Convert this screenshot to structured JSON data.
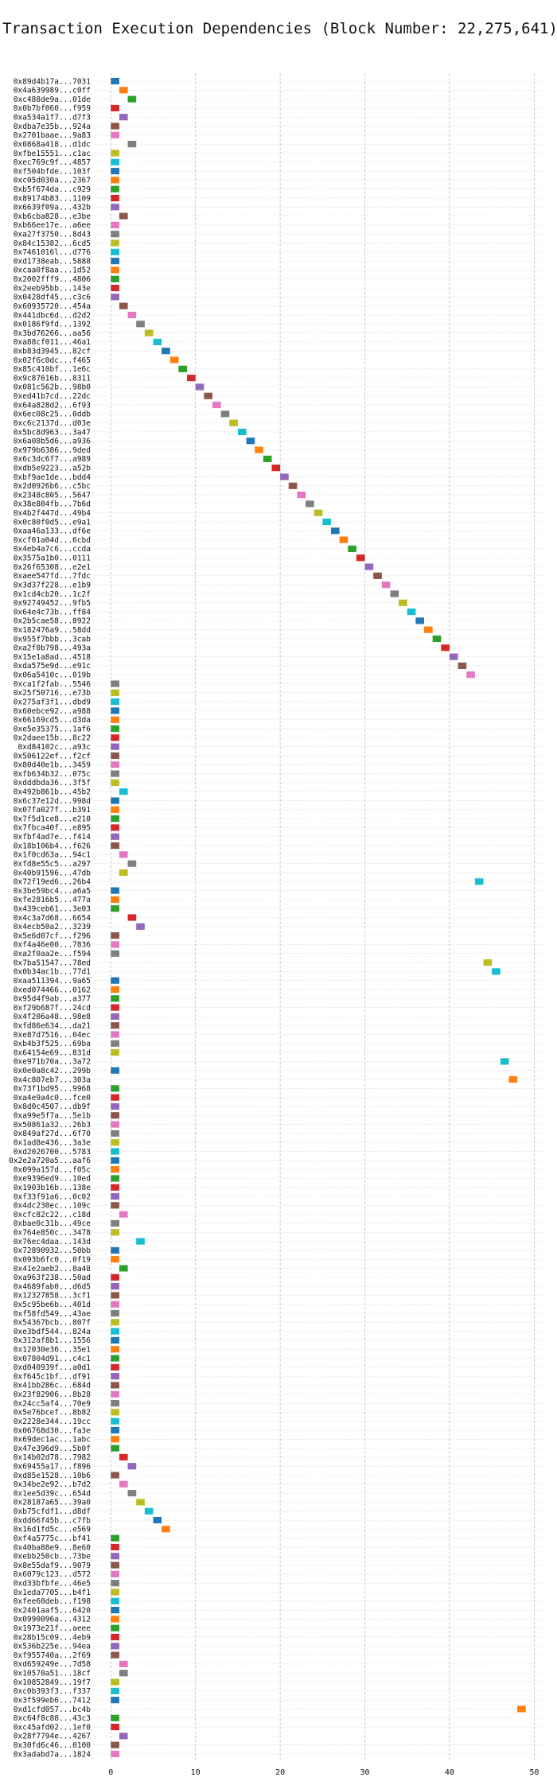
{
  "chart_data": {
    "type": "gantt",
    "title": "Transaction Execution Dependencies (Block Number: 22,275,641)",
    "xlabel": "",
    "ylabel": "",
    "xlim": [
      -2,
      51
    ],
    "x_ticks": [
      0,
      10,
      20,
      30,
      40,
      50
    ],
    "grid": true,
    "bar_width": 1,
    "palette": [
      "#1f77b4",
      "#ff7f0e",
      "#2ca02c",
      "#d62728",
      "#9467bd",
      "#8c564b",
      "#e377c2",
      "#7f7f7f",
      "#bcbd22",
      "#17becf"
    ],
    "transactions": [
      {
        "tx": "0x89d4b17a...7031",
        "start": 0
      },
      {
        "tx": "0x4a639989...c0ff",
        "start": 1
      },
      {
        "tx": "0xc488de9a...01de",
        "start": 2
      },
      {
        "tx": "0x0b7bf060...f959",
        "start": 0
      },
      {
        "tx": "0xa534a1f7...d7f3",
        "start": 1
      },
      {
        "tx": "0xdba7e35b...924a",
        "start": 0
      },
      {
        "tx": "0x2701baae...9a83",
        "start": 0
      },
      {
        "tx": "0x0868a418...d1dc",
        "start": 2
      },
      {
        "tx": "0xfbe15551...c1ac",
        "start": 0
      },
      {
        "tx": "0xec769c9f...4857",
        "start": 0
      },
      {
        "tx": "0xf504bfde...103f",
        "start": 0
      },
      {
        "tx": "0xc05d030a...2367",
        "start": 0
      },
      {
        "tx": "0xb5f674da...c929",
        "start": 0
      },
      {
        "tx": "0x89174b83...1109",
        "start": 0
      },
      {
        "tx": "0x6639f09a...432b",
        "start": 0
      },
      {
        "tx": "0xb6cba828...e3be",
        "start": 1
      },
      {
        "tx": "0xb66ee17e...a6ee",
        "start": 0
      },
      {
        "tx": "0xa27f3750...8d43",
        "start": 0
      },
      {
        "tx": "0x84c15382...6cd5",
        "start": 0
      },
      {
        "tx": "0x7461016l...d776",
        "start": 0
      },
      {
        "tx": "0xd1738eab...5888",
        "start": 0
      },
      {
        "tx": "0xcaa0f8aa...1d52",
        "start": 0
      },
      {
        "tx": "0x2002fff9...4806",
        "start": 0
      },
      {
        "tx": "0x2eeb95bb...143e",
        "start": 0
      },
      {
        "tx": "0x0428df45...c3c6",
        "start": 0
      },
      {
        "tx": "0x60935720...454a",
        "start": 1
      },
      {
        "tx": "0x441dbc6d...d2d2",
        "start": 2
      },
      {
        "tx": "0x0186f9fd...1392",
        "start": 3
      },
      {
        "tx": "0x3bd76266...aa56",
        "start": 4
      },
      {
        "tx": "0xa88cf011...46a1",
        "start": 5
      },
      {
        "tx": "0xb83d3945...82cf",
        "start": 6
      },
      {
        "tx": "0x02f6c0dc...f465",
        "start": 7
      },
      {
        "tx": "0x85c410bf...1e6c",
        "start": 8
      },
      {
        "tx": "0x9c87616b...8311",
        "start": 9
      },
      {
        "tx": "0x081c562b...98b0",
        "start": 10
      },
      {
        "tx": "0xed41b7cd...22dc",
        "start": 11
      },
      {
        "tx": "0x64a828d2...6f93",
        "start": 12
      },
      {
        "tx": "0x6ec08c25...0ddb",
        "start": 13
      },
      {
        "tx": "0xc6c2137d...d03e",
        "start": 14
      },
      {
        "tx": "0x5bc8d963...3a47",
        "start": 15
      },
      {
        "tx": "0x6a08b5d6...a936",
        "start": 16
      },
      {
        "tx": "0x979b6386...9ded",
        "start": 17
      },
      {
        "tx": "0x6c3dc6f7...a989",
        "start": 18
      },
      {
        "tx": "0xdb5e9223...a52b",
        "start": 19
      },
      {
        "tx": "0xbf9ae1de...bdd4",
        "start": 20
      },
      {
        "tx": "0x2d0926b6...c5bc",
        "start": 21
      },
      {
        "tx": "0x2348c805...5647",
        "start": 22
      },
      {
        "tx": "0x38e804fb...7b6d",
        "start": 23
      },
      {
        "tx": "0x4b2f447d...49b4",
        "start": 24
      },
      {
        "tx": "0x0c80f0d5...e9a1",
        "start": 25
      },
      {
        "tx": "0xaa46a133...df6e",
        "start": 26
      },
      {
        "tx": "0xcf01a04d...6cbd",
        "start": 27
      },
      {
        "tx": "0x4eb4a7c6...ccda",
        "start": 28
      },
      {
        "tx": "0x3575a1b0...0111",
        "start": 29
      },
      {
        "tx": "0x26f65308...e2e1",
        "start": 30
      },
      {
        "tx": "0xaee547fd...7fdc",
        "start": 31
      },
      {
        "tx": "0x3d37f228...e1b9",
        "start": 32
      },
      {
        "tx": "0x1cd4cb20...1c2f",
        "start": 33
      },
      {
        "tx": "0x92749452...9fb5",
        "start": 34
      },
      {
        "tx": "0x64e4c73b...ff84",
        "start": 35
      },
      {
        "tx": "0x2b5cae58...8922",
        "start": 36
      },
      {
        "tx": "0x182476a9...58dd",
        "start": 37
      },
      {
        "tx": "0x955f7bbb...3cab",
        "start": 38
      },
      {
        "tx": "0xa2f0b798...493a",
        "start": 39
      },
      {
        "tx": "0x15e1a8ad...4518",
        "start": 40
      },
      {
        "tx": "0xda575e9d...e91c",
        "start": 41
      },
      {
        "tx": "0x06a5410c...019b",
        "start": 42
      },
      {
        "tx": "0xca1f2fab...5546",
        "start": 0
      },
      {
        "tx": "0x25f50716...e73b",
        "start": 0
      },
      {
        "tx": "0x275af3f1...dbd9",
        "start": 0
      },
      {
        "tx": "0x60ebce92...a988",
        "start": 0
      },
      {
        "tx": "0x66169cd5...d3da",
        "start": 0
      },
      {
        "tx": "0xe5e35375...1af6",
        "start": 0
      },
      {
        "tx": "0x2daee15b...8c22",
        "start": 0
      },
      {
        "tx": "0xd84102c...a93c",
        "start": 0
      },
      {
        "tx": "0x506122ef...f2cf",
        "start": 0
      },
      {
        "tx": "0x80d40e1b...3459",
        "start": 0
      },
      {
        "tx": "0xfb634b32...075c",
        "start": 0
      },
      {
        "tx": "0xdddbda36...3f5f",
        "start": 0
      },
      {
        "tx": "0x492b861b...45b2",
        "start": 1
      },
      {
        "tx": "0x6c37e12d...998d",
        "start": 0
      },
      {
        "tx": "0x07fa027f...b391",
        "start": 0
      },
      {
        "tx": "0x7f5d1ce8...e210",
        "start": 0
      },
      {
        "tx": "0x7fbca40f...e895",
        "start": 0
      },
      {
        "tx": "0xfbf4ad7e...f414",
        "start": 0
      },
      {
        "tx": "0x18b106b4...f626",
        "start": 0
      },
      {
        "tx": "0x1f0cd63a...94c1",
        "start": 1
      },
      {
        "tx": "0xfd8e55c5...a297",
        "start": 2
      },
      {
        "tx": "0x40b91596...47db",
        "start": 1
      },
      {
        "tx": "0x72f19ed6...26b4",
        "start": 43
      },
      {
        "tx": "0x3be59bc4...a6a5",
        "start": 0
      },
      {
        "tx": "0xfe2816b5...477a",
        "start": 0
      },
      {
        "tx": "0x439ceb61...3e03",
        "start": 0
      },
      {
        "tx": "0x4c3a7d68...6654",
        "start": 2
      },
      {
        "tx": "0x4ecb50a2...3239",
        "start": 3
      },
      {
        "tx": "0x5e6d07cf...f296",
        "start": 0
      },
      {
        "tx": "0xf4a46e00...7836",
        "start": 0
      },
      {
        "tx": "0xa2f0aa2e...f594",
        "start": 0
      },
      {
        "tx": "0x7ba51547...78ed",
        "start": 44
      },
      {
        "tx": "0x0b34ac1b...77d1",
        "start": 45
      },
      {
        "tx": "0xaa511394...9a65",
        "start": 0
      },
      {
        "tx": "0xed074466...0162",
        "start": 0
      },
      {
        "tx": "0x95d4f9ab...a377",
        "start": 0
      },
      {
        "tx": "0xf29b687f...24cd",
        "start": 0
      },
      {
        "tx": "0x4f206a48...98e8",
        "start": 0
      },
      {
        "tx": "0xfd86e634...da21",
        "start": 0
      },
      {
        "tx": "0xe87d7516...04ec",
        "start": 0
      },
      {
        "tx": "0xb4b3f525...69ba",
        "start": 0
      },
      {
        "tx": "0x64154e69...831d",
        "start": 0
      },
      {
        "tx": "0xe971b70a...3a72",
        "start": 46
      },
      {
        "tx": "0x0e0a8c42...299b",
        "start": 0
      },
      {
        "tx": "0x4c807eb7...303a",
        "start": 47
      },
      {
        "tx": "0x73f1bd95...9968",
        "start": 0
      },
      {
        "tx": "0xa4e9a4c0...fce0",
        "start": 0
      },
      {
        "tx": "0x8d0c4507...db9f",
        "start": 0
      },
      {
        "tx": "0xa99e5f7a...5e1b",
        "start": 0
      },
      {
        "tx": "0x50861a32...26b3",
        "start": 0
      },
      {
        "tx": "0x849af27d...6f70",
        "start": 0
      },
      {
        "tx": "0x1ad8e436...3a3e",
        "start": 0
      },
      {
        "tx": "0xd2026700...5783",
        "start": 0
      },
      {
        "tx": "0x2e2a720a5...aaf6",
        "start": 0
      },
      {
        "tx": "0x099a157d...f05c",
        "start": 0
      },
      {
        "tx": "0xe9396ed9...10ed",
        "start": 0
      },
      {
        "tx": "0x1903b16b...138e",
        "start": 0
      },
      {
        "tx": "0xf33f91a6...0c02",
        "start": 0
      },
      {
        "tx": "0x4dc230ec...109c",
        "start": 0
      },
      {
        "tx": "0xcfc82c22...c18d",
        "start": 1
      },
      {
        "tx": "0xbae0c31b...49ce",
        "start": 0
      },
      {
        "tx": "0x764e850c...3478",
        "start": 0
      },
      {
        "tx": "0x76ec4daa...143d",
        "start": 3
      },
      {
        "tx": "0x72890932...50bb",
        "start": 0
      },
      {
        "tx": "0x093b6fc0...0f19",
        "start": 0
      },
      {
        "tx": "0x41e2aeb2...8a48",
        "start": 1
      },
      {
        "tx": "0xa963f238...50ad",
        "start": 0
      },
      {
        "tx": "0x4689fab0...d6d5",
        "start": 0
      },
      {
        "tx": "0x12327858...3cf1",
        "start": 0
      },
      {
        "tx": "0x5c95be6b...401d",
        "start": 0
      },
      {
        "tx": "0xf58fd549...43ae",
        "start": 0
      },
      {
        "tx": "0x54367bcb...807f",
        "start": 0
      },
      {
        "tx": "0xe3bdf544...824a",
        "start": 0
      },
      {
        "tx": "0x312af8b1...1556",
        "start": 0
      },
      {
        "tx": "0x12030e36...35e1",
        "start": 0
      },
      {
        "tx": "0x07804d91...c4c1",
        "start": 0
      },
      {
        "tx": "0xd040939f...a0d1",
        "start": 0
      },
      {
        "tx": "0xf645c1bf...df91",
        "start": 0
      },
      {
        "tx": "0x41bb286c...684d",
        "start": 0
      },
      {
        "tx": "0x23f82906...8b28",
        "start": 0
      },
      {
        "tx": "0x24cc5af4...70e9",
        "start": 0
      },
      {
        "tx": "0x5e76bcef...8b82",
        "start": 0
      },
      {
        "tx": "0x2228e344...19cc",
        "start": 0
      },
      {
        "tx": "0x06768d30...fa3e",
        "start": 0
      },
      {
        "tx": "0x69dec1ac...1abc",
        "start": 0
      },
      {
        "tx": "0x47e396d9...5b0f",
        "start": 0
      },
      {
        "tx": "0x14b02d78...7982",
        "start": 1
      },
      {
        "tx": "0x69455a17...f896",
        "start": 2
      },
      {
        "tx": "0xd85e1528...10b6",
        "start": 0
      },
      {
        "tx": "0x34be2e92...b7d2",
        "start": 1
      },
      {
        "tx": "0x1ee5d39c...654d",
        "start": 2
      },
      {
        "tx": "0x28187a65...39a0",
        "start": 3
      },
      {
        "tx": "0xb75cfdf1...d8df",
        "start": 4
      },
      {
        "tx": "0xdd66f45b...c7fb",
        "start": 5
      },
      {
        "tx": "0x16d1fd5c...e569",
        "start": 6
      },
      {
        "tx": "0xf4a5775c...bf41",
        "start": 0
      },
      {
        "tx": "0x40ba88e9...8e60",
        "start": 0
      },
      {
        "tx": "0xebb250cb...73be",
        "start": 0
      },
      {
        "tx": "0x8e55daf9...9079",
        "start": 0
      },
      {
        "tx": "0x6079c123...d572",
        "start": 0
      },
      {
        "tx": "0xd33bfbfe...46e5",
        "start": 0
      },
      {
        "tx": "0x1eda7705...b4f1",
        "start": 0
      },
      {
        "tx": "0xfee60deb...f198",
        "start": 0
      },
      {
        "tx": "0x2401aaf5...6420",
        "start": 0
      },
      {
        "tx": "0x0990096a...4312",
        "start": 0
      },
      {
        "tx": "0x1973e21f...aeee",
        "start": 0
      },
      {
        "tx": "0x28b15c09...4eb9",
        "start": 0
      },
      {
        "tx": "0x536b225e...94ea",
        "start": 0
      },
      {
        "tx": "0xf955740a...2f69",
        "start": 0
      },
      {
        "tx": "0xd659249e...7d58",
        "start": 1
      },
      {
        "tx": "0x10570a51...18cf",
        "start": 1
      },
      {
        "tx": "0x10852849...19f7",
        "start": 0
      },
      {
        "tx": "0xc0b393f3...f337",
        "start": 0
      },
      {
        "tx": "0x3f599eb6...7412",
        "start": 0
      },
      {
        "tx": "0xd1cfd057...bc4b",
        "start": 48
      },
      {
        "tx": "0xc64f8c88...43c3",
        "start": 0
      },
      {
        "tx": "0xc45afd02...1ef0",
        "start": 0
      },
      {
        "tx": "0x28f7794e...4267",
        "start": 1
      },
      {
        "tx": "0x30fd6c46...0100",
        "start": 0
      },
      {
        "tx": "0x3adabd7a...1824",
        "start": 0
      }
    ]
  }
}
